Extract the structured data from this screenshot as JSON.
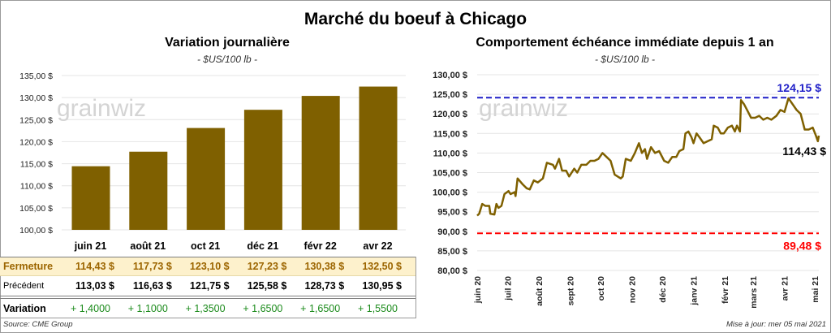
{
  "title": "Marché du boeuf à Chicago",
  "source": "Source: CME Group",
  "updated": "Mise à jour: mer 05 mai 2021",
  "watermark": "grainwiz",
  "colors": {
    "bar": "#7f6000",
    "line": "#7f6000",
    "high": "#1f1fc8",
    "low": "#ff0000",
    "positive": "#1a8a1a",
    "highlight_row": "#fdf1cc",
    "highlight_text": "#9c6500"
  },
  "table": {
    "columns": [
      "juin 21",
      "août 21",
      "oct 21",
      "déc 21",
      "févr 22",
      "avr 22"
    ],
    "rows": [
      {
        "label": "Fermeture",
        "values": [
          "114,43 $",
          "117,73 $",
          "123,10 $",
          "127,23 $",
          "130,38 $",
          "132,50 $"
        ]
      },
      {
        "label": "Précédent",
        "values": [
          "113,03 $",
          "116,63 $",
          "121,75 $",
          "125,58 $",
          "128,73 $",
          "130,95 $"
        ]
      },
      {
        "label": "Variation",
        "values": [
          "+ 1,4000",
          "+ 1,1000",
          "+ 1,3500",
          "+ 1,6500",
          "+ 1,6500",
          "+ 1,5500"
        ]
      }
    ]
  },
  "chart_data": [
    {
      "type": "bar",
      "title": "Variation  journalière",
      "subtitle": "- $US/100 lb -",
      "categories": [
        "juin 21",
        "août 21",
        "oct 21",
        "déc 21",
        "févr 22",
        "avr 22"
      ],
      "values": [
        114.43,
        117.73,
        123.1,
        127.23,
        130.38,
        132.5
      ],
      "ylim": [
        100,
        135
      ],
      "yticks": [
        "100,00 $",
        "105,00 $",
        "110,00 $",
        "115,00 $",
        "120,00 $",
        "125,00 $",
        "130,00 $",
        "135,00 $"
      ],
      "grid": true
    },
    {
      "type": "line",
      "title": "Comportement  échéance immédiate depuis 1 an",
      "subtitle": "- $US/100 lb -",
      "ylim": [
        80,
        130
      ],
      "yticks": [
        "80,00 $",
        "85,00 $",
        "90,00 $",
        "95,00 $",
        "100,00 $",
        "105,00 $",
        "110,00 $",
        "115,00 $",
        "120,00 $",
        "125,00 $",
        "130,00 $"
      ],
      "xticks": [
        "juin 20",
        "juil 20",
        "août 20",
        "sept 20",
        "oct 20",
        "nov 20",
        "déc 20",
        "janv 21",
        "févr 21",
        "mars 21",
        "avr 21",
        "mai 21"
      ],
      "xlim": [
        "2020-06-01",
        "2021-05-05"
      ],
      "grid": true,
      "high": {
        "value": 124.15,
        "label": "124,15 $"
      },
      "low": {
        "value": 89.48,
        "label": "89,48 $"
      },
      "last": {
        "value": 114.43,
        "label": "114,43 $"
      },
      "series": [
        {
          "points": [
            [
              "2020-06-01",
              94
            ],
            [
              "2020-06-03",
              94.5
            ],
            [
              "2020-06-06",
              97
            ],
            [
              "2020-06-09",
              96.5
            ],
            [
              "2020-06-13",
              96.5
            ],
            [
              "2020-06-14",
              94.5
            ],
            [
              "2020-06-18",
              94.3
            ],
            [
              "2020-06-20",
              97
            ],
            [
              "2020-06-22",
              96
            ],
            [
              "2020-06-25",
              96.5
            ],
            [
              "2020-06-28",
              99.5
            ],
            [
              "2020-07-02",
              100.3
            ],
            [
              "2020-07-04",
              99.5
            ],
            [
              "2020-07-08",
              100
            ],
            [
              "2020-07-09",
              99
            ],
            [
              "2020-07-11",
              103.5
            ],
            [
              "2020-07-16",
              102
            ],
            [
              "2020-07-20",
              101
            ],
            [
              "2020-07-23",
              100.7
            ],
            [
              "2020-07-27",
              103
            ],
            [
              "2020-07-31",
              102.5
            ],
            [
              "2020-08-05",
              103.5
            ],
            [
              "2020-08-09",
              107.5
            ],
            [
              "2020-08-15",
              107
            ],
            [
              "2020-08-17",
              106
            ],
            [
              "2020-08-21",
              108.5
            ],
            [
              "2020-08-24",
              105.5
            ],
            [
              "2020-08-28",
              105.5
            ],
            [
              "2020-08-31",
              104
            ],
            [
              "2020-09-05",
              106
            ],
            [
              "2020-09-08",
              105
            ],
            [
              "2020-09-12",
              107
            ],
            [
              "2020-09-17",
              107
            ],
            [
              "2020-09-21",
              108
            ],
            [
              "2020-09-25",
              108
            ],
            [
              "2020-09-29",
              108.5
            ],
            [
              "2020-10-03",
              110
            ],
            [
              "2020-10-07",
              109
            ],
            [
              "2020-10-11",
              108
            ],
            [
              "2020-10-15",
              104.5
            ],
            [
              "2020-10-21",
              103.5
            ],
            [
              "2020-10-23",
              104
            ],
            [
              "2020-10-26",
              108.5
            ],
            [
              "2020-10-31",
              108
            ],
            [
              "2020-11-04",
              110
            ],
            [
              "2020-11-08",
              112.5
            ],
            [
              "2020-11-11",
              110
            ],
            [
              "2020-11-14",
              111
            ],
            [
              "2020-11-16",
              108.5
            ],
            [
              "2020-11-20",
              111.5
            ],
            [
              "2020-11-24",
              110
            ],
            [
              "2020-11-28",
              110.5
            ],
            [
              "2020-12-03",
              108
            ],
            [
              "2020-12-07",
              107.5
            ],
            [
              "2020-12-11",
              109
            ],
            [
              "2020-12-15",
              109
            ],
            [
              "2020-12-18",
              110.5
            ],
            [
              "2020-12-22",
              111
            ],
            [
              "2020-12-24",
              115
            ],
            [
              "2020-12-27",
              115.5
            ],
            [
              "2020-12-30",
              114
            ],
            [
              "2021-01-01",
              112.5
            ],
            [
              "2021-01-04",
              115
            ],
            [
              "2021-01-07",
              114
            ],
            [
              "2021-01-11",
              112.5
            ],
            [
              "2021-01-15",
              113
            ],
            [
              "2021-01-19",
              113.5
            ],
            [
              "2021-01-21",
              117
            ],
            [
              "2021-01-25",
              116.5
            ],
            [
              "2021-01-28",
              115
            ],
            [
              "2021-01-31",
              115
            ],
            [
              "2021-02-04",
              116.5
            ],
            [
              "2021-02-08",
              117
            ],
            [
              "2021-02-11",
              115.5
            ],
            [
              "2021-02-13",
              117
            ],
            [
              "2021-02-16",
              115.5
            ],
            [
              "2021-02-17",
              123.5
            ],
            [
              "2021-02-20",
              122.5
            ],
            [
              "2021-02-23",
              121
            ],
            [
              "2021-02-27",
              119
            ],
            [
              "2021-03-03",
              119
            ],
            [
              "2021-03-07",
              119.5
            ],
            [
              "2021-03-11",
              118.5
            ],
            [
              "2021-03-15",
              119
            ],
            [
              "2021-03-19",
              118.5
            ],
            [
              "2021-03-24",
              119.5
            ],
            [
              "2021-03-28",
              121
            ],
            [
              "2021-04-01",
              120.5
            ],
            [
              "2021-04-05",
              124
            ],
            [
              "2021-04-09",
              122.5
            ],
            [
              "2021-04-13",
              121
            ],
            [
              "2021-04-17",
              120
            ],
            [
              "2021-04-21",
              116
            ],
            [
              "2021-04-25",
              116
            ],
            [
              "2021-04-29",
              116.5
            ],
            [
              "2021-05-02",
              114.5
            ],
            [
              "2021-05-04",
              113
            ],
            [
              "2021-05-05",
              114.43
            ]
          ]
        }
      ]
    }
  ]
}
